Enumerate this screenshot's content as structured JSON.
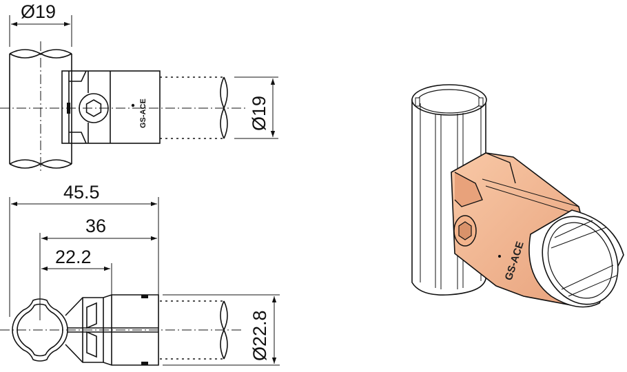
{
  "dimensions": {
    "top_diameter": "Ø19",
    "right_diameter": "Ø19",
    "overall_length": "45.5",
    "mid_length": "36",
    "short_length": "22.2",
    "joint_diameter": "Ø22.8"
  },
  "logo": {
    "text_top_view": "GS-ACE",
    "text_3d_view": "GS-ACE"
  },
  "colors": {
    "line": "#111111",
    "joint_fill": "#f3b48c",
    "joint_shade": "#d9926a",
    "pipe_fill": "#ffffff"
  }
}
